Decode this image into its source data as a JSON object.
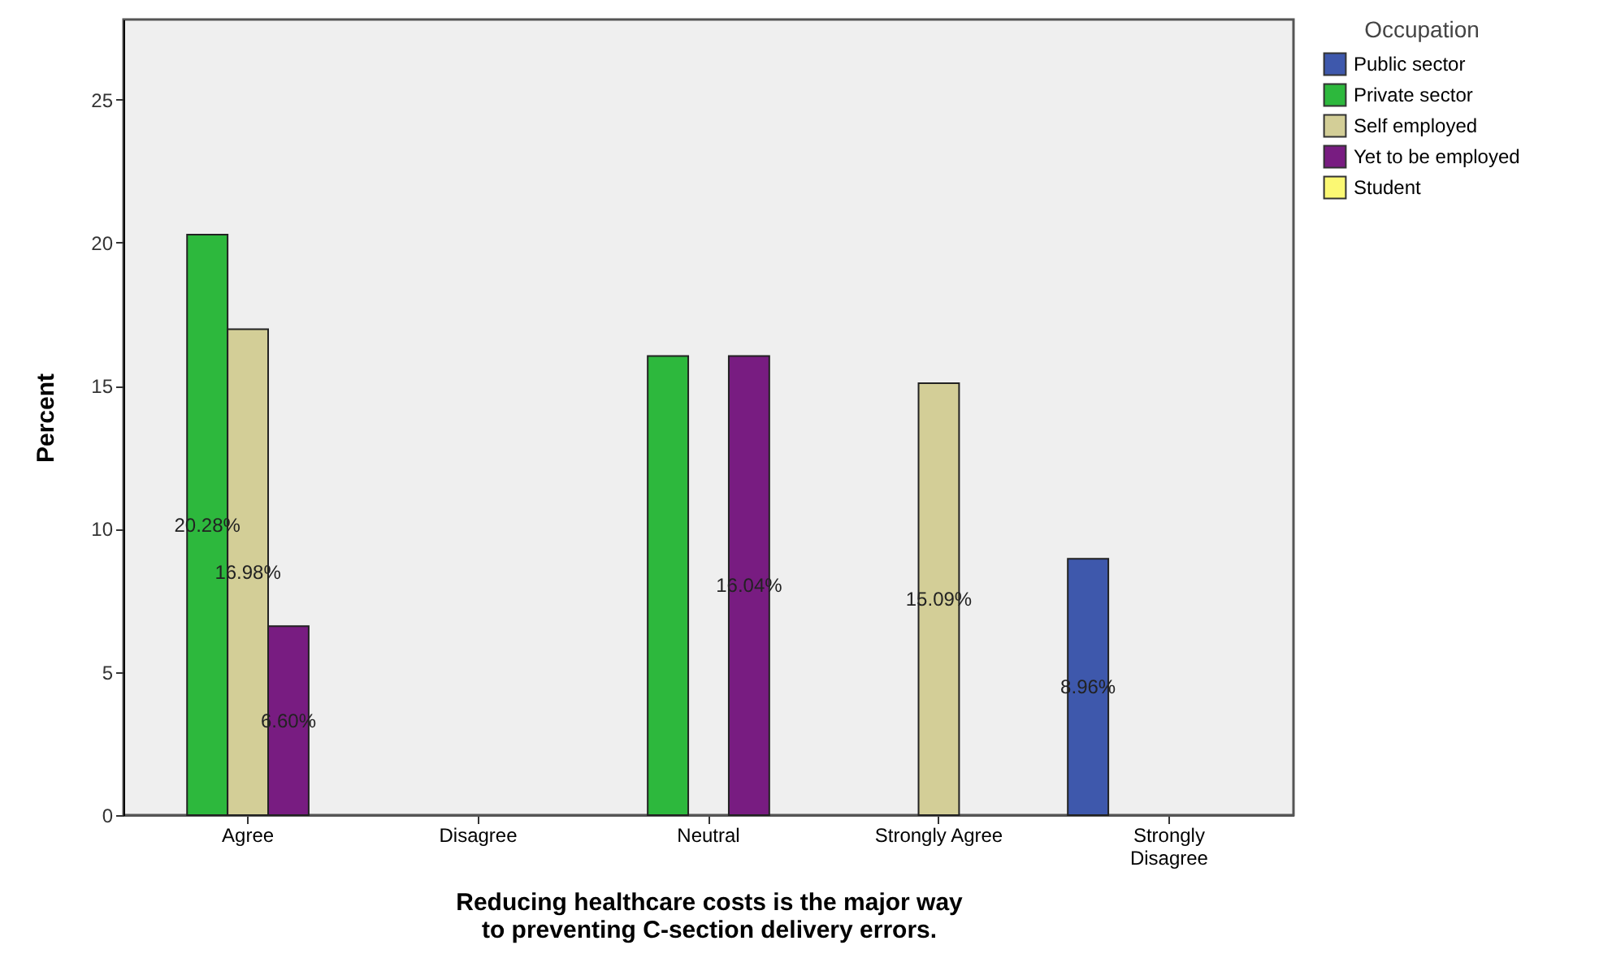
{
  "chart_data": {
    "type": "bar",
    "xlabel": "Reducing healthcare costs is the major way to preventing C-section delivery errors.",
    "ylabel": "Percent",
    "legend_title": "Occupation",
    "legend": "top right",
    "grid": false,
    "categories": [
      "Agree",
      "Disagree",
      "Neutral",
      "Strongly Agree",
      "Strongly Disagree"
    ],
    "ylim": [
      0,
      27.8
    ],
    "yticks": [
      0,
      5,
      10,
      15,
      20,
      25
    ],
    "series": [
      {
        "name": "Public sector",
        "color": "#3e58ac",
        "values": [
          null,
          null,
          null,
          null,
          8.96
        ],
        "value_labels": [
          null,
          null,
          null,
          null,
          "8.96%"
        ]
      },
      {
        "name": "Private sector",
        "color": "#2db83d",
        "values": [
          20.28,
          null,
          16.04,
          null,
          null
        ],
        "value_labels": [
          "20.28%",
          null,
          null,
          null,
          null
        ]
      },
      {
        "name": "Self employed",
        "color": "#d3ce97",
        "values": [
          16.98,
          null,
          null,
          15.09,
          null
        ],
        "value_labels": [
          "16.98%",
          null,
          null,
          "15.09%",
          null
        ]
      },
      {
        "name": "Yet to be employed",
        "color": "#781c81",
        "values": [
          6.6,
          null,
          16.04,
          null,
          null
        ],
        "value_labels": [
          "6.60%",
          null,
          "16.04%",
          null,
          null
        ]
      },
      {
        "name": "Student",
        "color": "#fbf873",
        "values": [
          null,
          null,
          null,
          null,
          null
        ]
      }
    ]
  }
}
